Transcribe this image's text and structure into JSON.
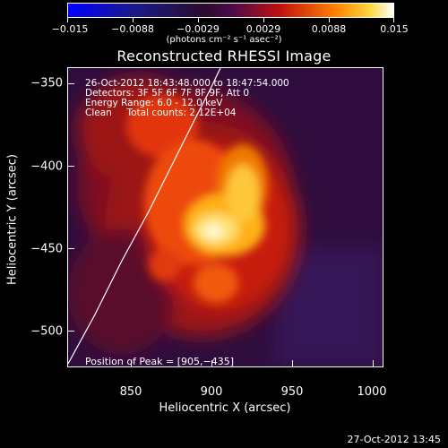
{
  "colorbar": {
    "labels": [
      "−0.015",
      "−0.0088",
      "−0.0029",
      "0.0029",
      "0.0088",
      "0.015"
    ],
    "units": "(photons cm⁻² s⁻¹ asec⁻²)"
  },
  "title": "Reconstructed RHESSI Image",
  "info": {
    "time_range": "26-Oct-2012 18:43:48.000 to 18:47:54.000",
    "detectors": "Detectors: 3F 5F 6F 7F 8F 9F, Att 0",
    "energy": "Energy Range: 6.0 - 12.0 keV",
    "clean": "Clean     Total counts: 2.12E+04"
  },
  "axes": {
    "xlabel": "Heliocentric X (arcsec)",
    "ylabel": "Heliocentric Y (arcsec)",
    "xticks": [
      "850",
      "900",
      "950",
      "1000"
    ],
    "yticks": [
      "−350",
      "−400",
      "−450",
      "−500"
    ]
  },
  "peak": "Position of Peak = [905,−435]",
  "timestamp": "27-Oct-2012 13:45"
}
